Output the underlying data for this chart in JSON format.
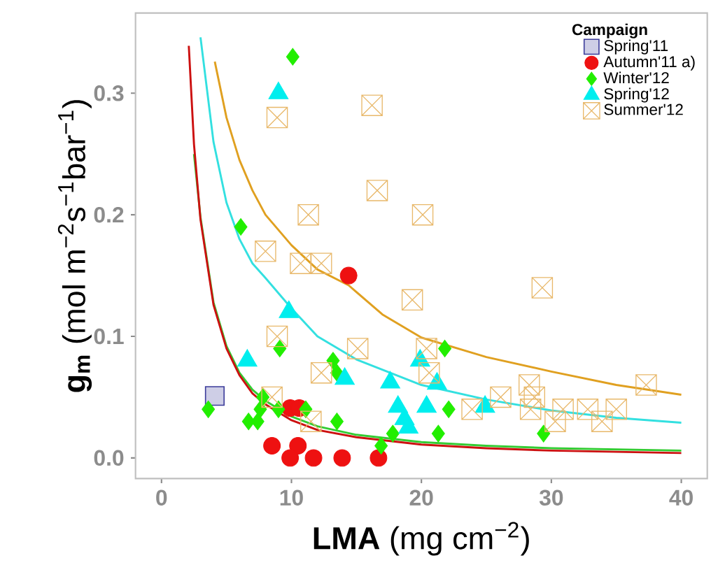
{
  "chart_data": {
    "type": "scatter",
    "xlabel": "**LMA** (mg cm$^{−2}$)",
    "ylabel": "**g$_{m}$** (mol m$^{−2}$s$^{−1}$bar$^{−1}$)",
    "legend_title": "Campaign",
    "legend": "top right",
    "grid": false,
    "xlim": [
      -2,
      42
    ],
    "ylim": [
      -0.017,
      0.366
    ],
    "xticks": [
      0,
      10,
      20,
      30,
      40
    ],
    "yticks": [
      {
        "value": 0,
        "label": "0.0"
      },
      {
        "value": 0.1,
        "label": "0.1"
      },
      {
        "value": 0.2,
        "label": "0.2"
      },
      {
        "value": 0.3,
        "label": "0.3"
      }
    ],
    "series": [
      {
        "name": "Spring'11",
        "color": "#3b3b9a",
        "marker": "square",
        "x": [
          4.1
        ],
        "values": [
          0.051
        ]
      },
      {
        "name": "Autumn'11 a)",
        "color": "#ee1111",
        "marker": "circle",
        "x": [
          14.4,
          9.9,
          10.6,
          8.5,
          10.5,
          9.9,
          11.7,
          13.9,
          16.7
        ],
        "values": [
          0.15,
          0.041,
          0.041,
          0.01,
          0.01,
          0,
          0,
          0,
          0
        ]
      },
      {
        "name": "Winter'12",
        "color": "#22ee00",
        "marker": "diamond",
        "x": [
          10.1,
          6.1,
          9.1,
          21.8,
          13.2,
          13.5,
          3.6,
          7.8,
          11.1,
          22.1,
          6.7,
          7.4,
          13.5,
          9.0,
          17.8,
          21.3,
          29.4,
          16.9,
          7.6
        ],
        "values": [
          0.33,
          0.19,
          0.09,
          0.09,
          0.08,
          0.07,
          0.04,
          0.05,
          0.04,
          0.04,
          0.03,
          0.03,
          0.03,
          0.04,
          0.02,
          0.02,
          0.02,
          0.01,
          0.04
        ]
      },
      {
        "name": "Spring'12",
        "color": "#00eeee",
        "marker": "triangle",
        "x": [
          9.0,
          9.8,
          6.6,
          19.9,
          14.1,
          17.6,
          21.2,
          18.2,
          20.4,
          24.9,
          18.7,
          19.0
        ],
        "values": [
          0.3,
          0.12,
          0.08,
          0.08,
          0.065,
          0.062,
          0.061,
          0.042,
          0.042,
          0.042,
          0.032,
          0.025
        ]
      },
      {
        "name": "Summer'12",
        "color": "#e8b86a",
        "marker": "cross",
        "x": [
          8.9,
          16.2,
          16.6,
          11.3,
          20.1,
          8.0,
          10.7,
          12.3,
          29.3,
          19.3,
          8.9,
          15.1,
          20.4,
          12.3,
          20.6,
          37.3,
          28.3,
          26.1,
          28.7,
          8.5,
          28.4,
          23.9,
          30.9,
          32.8,
          35.0,
          30.3,
          33.9,
          11.5
        ],
        "values": [
          0.28,
          0.29,
          0.22,
          0.2,
          0.2,
          0.17,
          0.16,
          0.16,
          0.14,
          0.13,
          0.1,
          0.09,
          0.09,
          0.07,
          0.07,
          0.06,
          0.06,
          0.05,
          0.05,
          0.05,
          0.04,
          0.04,
          0.04,
          0.04,
          0.04,
          0.03,
          0.03,
          0.03
        ]
      },
      {
        "type": "line",
        "color": "#33cc33",
        "marker": "none",
        "x": [
          2.5,
          3,
          4,
          5,
          6,
          7,
          8,
          10,
          12,
          15,
          20,
          25,
          30,
          40
        ],
        "values": [
          0.25,
          0.198,
          0.128,
          0.092,
          0.07,
          0.056,
          0.047,
          0.034,
          0.026,
          0.019,
          0.013,
          0.01,
          0.008,
          0.006
        ]
      },
      {
        "type": "line",
        "color": "#cc1010",
        "marker": "none",
        "x": [
          2.1,
          2.5,
          3,
          4,
          5,
          6,
          7,
          8,
          10,
          12,
          15,
          20,
          25,
          30,
          40
        ],
        "values": [
          0.339,
          0.258,
          0.196,
          0.126,
          0.09,
          0.068,
          0.053,
          0.044,
          0.031,
          0.023,
          0.017,
          0.011,
          0.008,
          0.006,
          0.004
        ]
      },
      {
        "type": "line",
        "color": "#33e0e0",
        "marker": "none",
        "x": [
          3,
          4,
          5,
          6,
          7,
          8,
          10,
          12,
          15,
          20,
          25,
          30,
          35,
          40
        ],
        "values": [
          0.346,
          0.26,
          0.21,
          0.18,
          0.16,
          0.148,
          0.123,
          0.1,
          0.081,
          0.06,
          0.048,
          0.039,
          0.033,
          0.029
        ]
      },
      {
        "type": "line",
        "color": "#e0a020",
        "marker": "none",
        "x": [
          4.1,
          5,
          6,
          7,
          8,
          10,
          12,
          14.4,
          17,
          20,
          25,
          30,
          35,
          40
        ],
        "values": [
          0.326,
          0.28,
          0.245,
          0.22,
          0.2,
          0.175,
          0.155,
          0.142,
          0.118,
          0.099,
          0.083,
          0.071,
          0.06,
          0.052
        ]
      }
    ]
  }
}
